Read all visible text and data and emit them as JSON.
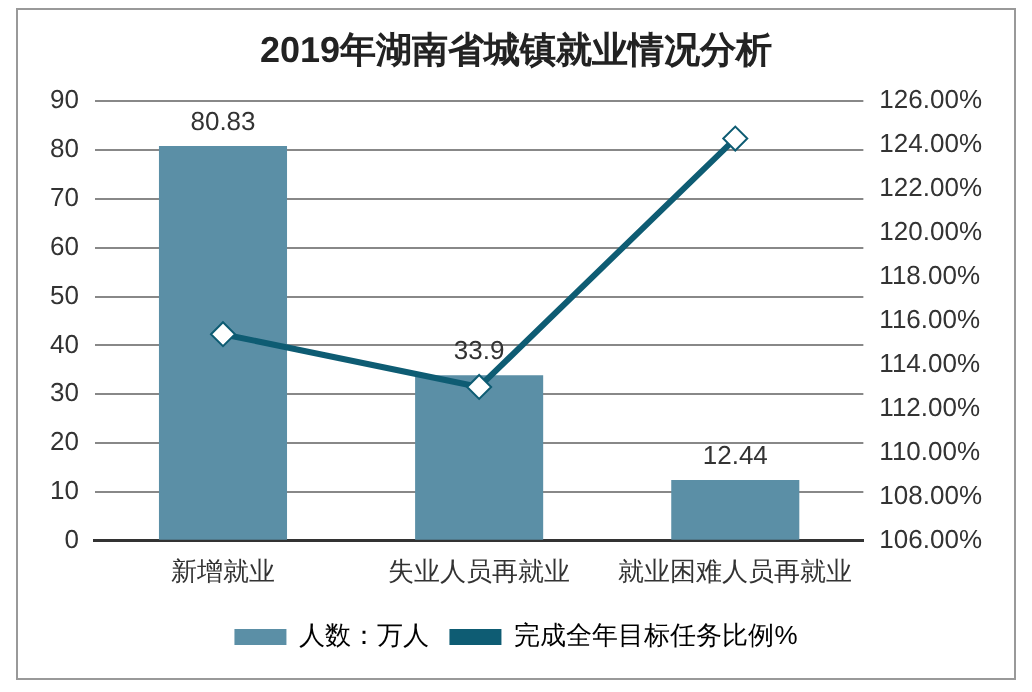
{
  "chart_data": {
    "type": "bar",
    "title": "2019年湖南省城镇就业情况分析",
    "categories": [
      "新增就业",
      "失业人员再就业",
      "就业困难人员再就业"
    ],
    "series": [
      {
        "name": "人数：万人",
        "color": "#5b8fa6",
        "values": [
          80.83,
          33.9,
          12.44
        ],
        "value_labels": [
          "80.83",
          "33.9",
          "12.44"
        ]
      },
      {
        "name": "完成全年目标任务比例%",
        "type": "line",
        "axis": "y2",
        "color": "#0e5c73",
        "marker": "diamond",
        "values": [
          115.4,
          113.0,
          124.3
        ]
      }
    ],
    "ylim": [
      0,
      90
    ],
    "yticks": [
      0,
      10,
      20,
      30,
      40,
      50,
      60,
      70,
      80,
      90
    ],
    "y2lim": [
      106,
      126
    ],
    "y2ticks": [
      {
        "value": 106,
        "label": "106.00%"
      },
      {
        "value": 108,
        "label": "108.00%"
      },
      {
        "value": 110,
        "label": "110.00%"
      },
      {
        "value": 112,
        "label": "112.00%"
      },
      {
        "value": 114,
        "label": "114.00%"
      },
      {
        "value": 116,
        "label": "116.00%"
      },
      {
        "value": 118,
        "label": "118.00%"
      },
      {
        "value": 120,
        "label": "120.00%"
      },
      {
        "value": 122,
        "label": "122.00%"
      },
      {
        "value": 124,
        "label": "124.00%"
      },
      {
        "value": 126,
        "label": "126.00%"
      }
    ],
    "grid": "y",
    "legend": "bottom"
  }
}
